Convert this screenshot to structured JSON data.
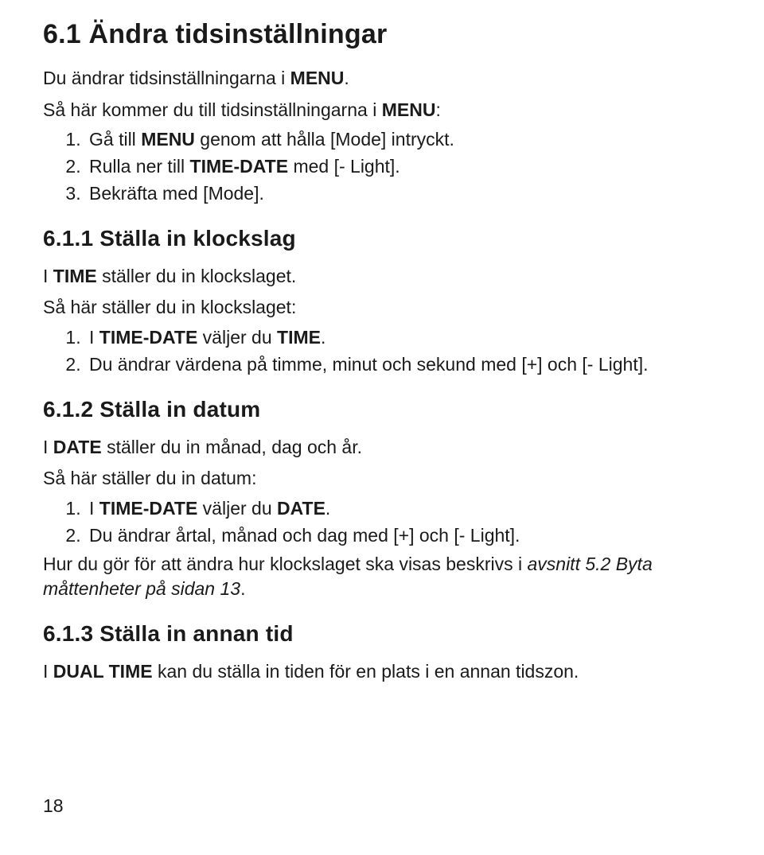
{
  "section61": {
    "title": "6.1 Ändra tidsinställningar",
    "intro_pre": "Du ändrar tidsinställningarna i ",
    "intro_bold": "MENU",
    "intro_post": ".",
    "lead_pre": "Så här kommer du till tidsinställningarna i ",
    "lead_bold": "MENU",
    "lead_post": ":",
    "steps": {
      "s1_pre": "Gå till ",
      "s1_bold": "MENU",
      "s1_post": " genom att hålla [Mode] intryckt.",
      "s2_pre": "Rulla ner till ",
      "s2_bold": "TIME-DATE",
      "s2_post": " med [- Light].",
      "s3": "Bekräfta med [Mode]."
    }
  },
  "section611": {
    "title": "6.1.1 Ställa in klockslag",
    "intro_pre": "I ",
    "intro_bold": "TIME",
    "intro_post": " ställer du in klockslaget.",
    "lead": "Så här ställer du in klockslaget:",
    "steps": {
      "s1_pre": "I ",
      "s1_bold1": "TIME-DATE",
      "s1_mid": " väljer du ",
      "s1_bold2": "TIME",
      "s1_post": ".",
      "s2": "Du ändrar värdena på timme, minut och sekund med [+] och [- Light]."
    }
  },
  "section612": {
    "title": "6.1.2 Ställa in datum",
    "intro_pre": "I ",
    "intro_bold": "DATE",
    "intro_post": " ställer du in månad, dag och år.",
    "lead": "Så här ställer du in datum:",
    "steps": {
      "s1_pre": "I ",
      "s1_bold1": "TIME-DATE",
      "s1_mid": " väljer du ",
      "s1_bold2": "DATE",
      "s1_post": ".",
      "s2": "Du ändrar årtal, månad och dag med [+] och [- Light]."
    },
    "note_pre": "Hur du gör för att ändra hur klockslaget ska visas beskrivs i ",
    "note_italic": "avsnitt 5.2 Byta måttenheter på sidan 13",
    "note_post": "."
  },
  "section613": {
    "title": "6.1.3 Ställa in annan tid",
    "intro_pre": "I ",
    "intro_bold": "DUAL TIME",
    "intro_post": " kan du ställa in tiden för en plats i en annan tidszon."
  },
  "pagenum": "18"
}
